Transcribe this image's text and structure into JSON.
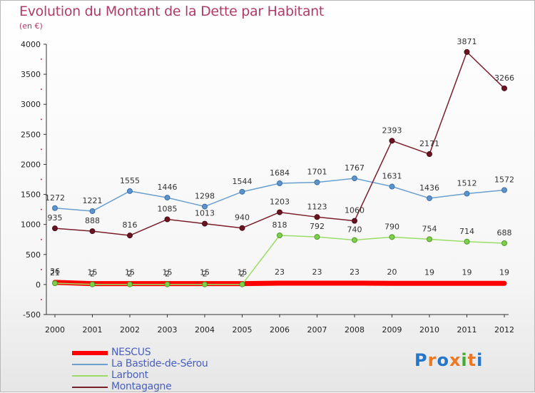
{
  "header": {
    "title": "Evolution du Montant de la Dette par Habitant",
    "subtitle": "(en €)"
  },
  "chart_data": {
    "type": "line",
    "title": "Evolution du Montant de la Dette par Habitant",
    "subtitle": "(en €)",
    "xlabel": "",
    "ylabel": "",
    "x": [
      "2000",
      "2001",
      "2002",
      "2003",
      "2004",
      "2005",
      "2006",
      "2007",
      "2008",
      "2009",
      "2010",
      "2011",
      "2012"
    ],
    "ylim": [
      -500,
      4000
    ],
    "yticks": [
      -500,
      0,
      500,
      1000,
      1500,
      2000,
      2500,
      3000,
      3500,
      4000
    ],
    "grid": false,
    "legend_position": "bottom-left",
    "series": [
      {
        "name": "NESCUS",
        "color": "#ff0000",
        "values": [
          36,
          15,
          15,
          15,
          15,
          15,
          23,
          23,
          23,
          20,
          19,
          19,
          19
        ]
      },
      {
        "name": "La Bastide-de-Sérou",
        "color": "#6a9fd0",
        "values": [
          1272,
          1221,
          1555,
          1446,
          1298,
          1544,
          1684,
          1701,
          1767,
          1631,
          1436,
          1512,
          1572
        ]
      },
      {
        "name": "Larbont",
        "color": "#99dd66",
        "values": [
          21,
          2,
          2,
          2,
          2,
          2,
          818,
          792,
          740,
          790,
          754,
          714,
          688
        ]
      },
      {
        "name": "Montagagne",
        "color": "#7a1e2a",
        "values": [
          935,
          888,
          816,
          1085,
          1013,
          940,
          1203,
          1123,
          1060,
          2393,
          2171,
          3871,
          3266
        ]
      }
    ]
  },
  "logo": {
    "text": "Proxiti",
    "letters": [
      "P",
      "r",
      "o",
      "x",
      "i",
      "t",
      "i"
    ],
    "colors": [
      "#2277cc",
      "#ee7722",
      "#2277cc",
      "#ee7722",
      "#44aa33",
      "#ee7722",
      "#2277cc"
    ]
  }
}
